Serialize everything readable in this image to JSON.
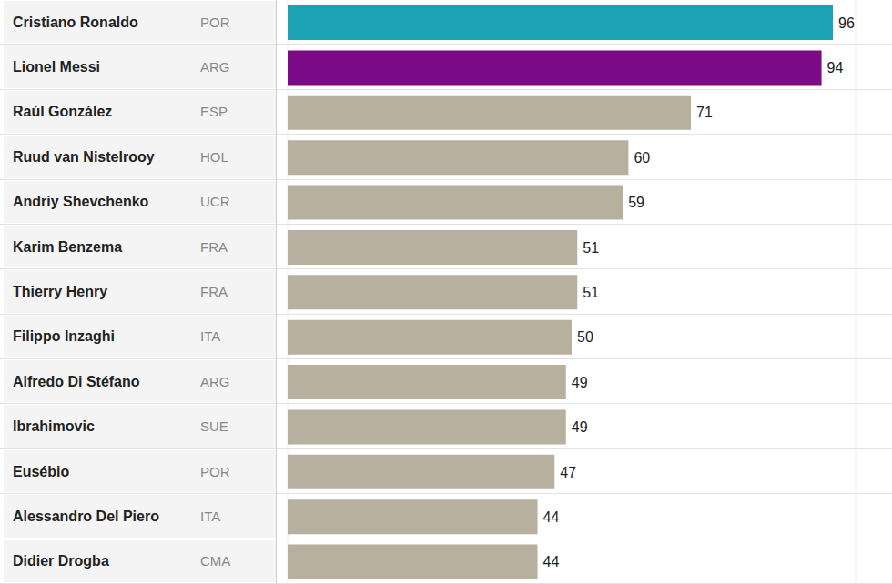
{
  "chart_data": {
    "type": "bar",
    "orientation": "horizontal",
    "categories": [
      "Cristiano Ronaldo",
      "Lionel Messi",
      "Raúl González",
      "Ruud van Nistelrooy",
      "Andriy Shevchenko",
      "Karim Benzema",
      "Thierry Henry",
      "Filippo Inzaghi",
      "Alfredo Di Stéfano",
      "Ibrahimovic",
      "Eusébio",
      "Alessandro Del Piero",
      "Didier Drogba"
    ],
    "countries": [
      "POR",
      "ARG",
      "ESP",
      "HOL",
      "UCR",
      "FRA",
      "FRA",
      "ITA",
      "ARG",
      "SUE",
      "POR",
      "ITA",
      "CMA"
    ],
    "values": [
      96,
      94,
      71,
      60,
      59,
      51,
      51,
      50,
      49,
      49,
      47,
      44,
      44
    ],
    "colors": [
      "#1ba3b3",
      "#7a0a86",
      "#b7b09f",
      "#b7b09f",
      "#b7b09f",
      "#b7b09f",
      "#b7b09f",
      "#b7b09f",
      "#b7b09f",
      "#b7b09f",
      "#b7b09f",
      "#b7b09f",
      "#b7b09f"
    ],
    "xlim": [
      0,
      100
    ],
    "xticks": [
      0,
      20,
      40,
      60,
      80,
      100
    ],
    "grid": true,
    "data_labels": true,
    "tick_labels": false
  }
}
